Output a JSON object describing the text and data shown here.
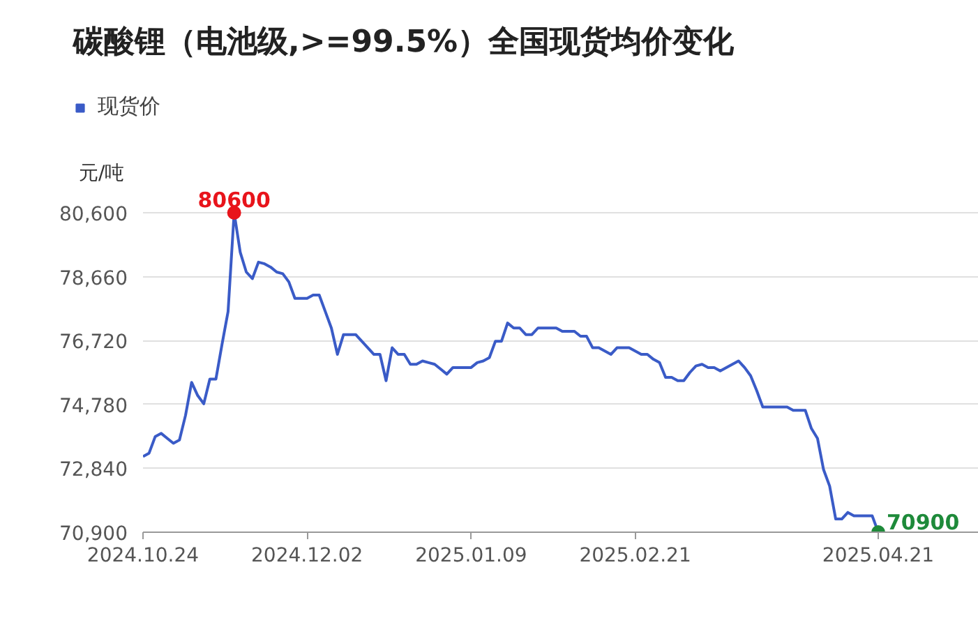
{
  "chart_data": {
    "type": "line",
    "title": "碳酸锂（电池级,>=99.5%）全国现货均价变化",
    "ylabel": "元/吨",
    "categories": [
      "2024.10.24",
      null,
      null,
      null,
      null,
      null,
      null,
      null,
      null,
      null,
      null,
      null,
      null,
      null,
      null,
      null,
      null,
      null,
      null,
      null,
      null,
      null,
      null,
      null,
      null,
      null,
      null,
      "2024.12.02",
      null,
      null,
      null,
      null,
      null,
      null,
      null,
      null,
      null,
      null,
      null,
      null,
      null,
      null,
      null,
      null,
      null,
      null,
      null,
      null,
      null,
      null,
      null,
      null,
      null,
      null,
      "2025.01.09",
      null,
      null,
      null,
      null,
      null,
      null,
      null,
      null,
      null,
      null,
      null,
      null,
      null,
      null,
      null,
      null,
      null,
      null,
      null,
      null,
      null,
      null,
      null,
      null,
      null,
      null,
      "2025.02.21",
      null,
      null,
      null,
      null,
      null,
      null,
      null,
      null,
      null,
      null,
      null,
      null,
      null,
      null,
      null,
      null,
      null,
      null,
      null,
      null,
      null,
      null,
      null,
      null,
      null,
      null,
      null,
      null,
      null,
      null,
      null,
      null,
      null,
      null,
      null,
      null,
      null,
      null,
      null,
      "2025.04.21"
    ],
    "series": [
      {
        "name": "现货价",
        "color": "#3a5bc7",
        "values": [
          73200,
          73300,
          73800,
          73900,
          73750,
          73600,
          73700,
          74450,
          75450,
          75050,
          74800,
          75550,
          75550,
          76600,
          77600,
          80600,
          79400,
          78800,
          78600,
          79100,
          79050,
          78950,
          78800,
          78750,
          78500,
          78000,
          78000,
          78000,
          78100,
          78100,
          77600,
          77100,
          76300,
          76900,
          76900,
          76900,
          76700,
          76500,
          76300,
          76300,
          75500,
          76500,
          76300,
          76300,
          76000,
          76000,
          76100,
          76050,
          76000,
          75850,
          75700,
          75900,
          75900,
          75900,
          75900,
          76050,
          76100,
          76200,
          76700,
          76700,
          77250,
          77100,
          77100,
          76900,
          76900,
          77100,
          77100,
          77100,
          77100,
          77000,
          77000,
          77000,
          76850,
          76850,
          76500,
          76500,
          76400,
          76300,
          76500,
          76500,
          76500,
          76400,
          76300,
          76300,
          76150,
          76050,
          75600,
          75600,
          75500,
          75500,
          75750,
          75950,
          76000,
          75900,
          75900,
          75800,
          75900,
          76000,
          76100,
          75900,
          75650,
          75200,
          74700,
          74700,
          74700,
          74700,
          74700,
          74600,
          74600,
          74600,
          74050,
          73750,
          72800,
          72300,
          71300,
          71300,
          71500,
          71400,
          71400,
          71400,
          71400,
          70900
        ]
      }
    ],
    "ylim": [
      70900,
      80600
    ],
    "yticks": [
      {
        "value": 70900,
        "label": "70,900"
      },
      {
        "value": 72840,
        "label": "72,840"
      },
      {
        "value": 74780,
        "label": "74,780"
      },
      {
        "value": 76720,
        "label": "76,720"
      },
      {
        "value": 78660,
        "label": "78,660"
      },
      {
        "value": 80600,
        "label": "80,600"
      }
    ],
    "annotations": [
      {
        "text": "80600",
        "y": 80600
      },
      {
        "text": "70900",
        "x": "2025.04.21",
        "y": 70900
      }
    ],
    "grid": "y",
    "legend": "top left",
    "marker": "none",
    "line_style": "solid"
  }
}
